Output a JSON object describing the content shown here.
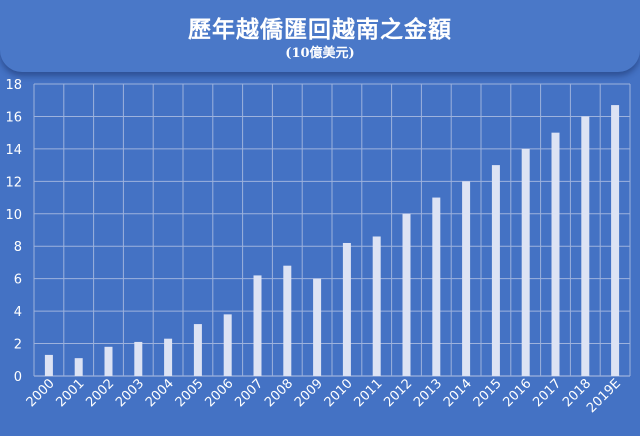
{
  "colors": {
    "background": "#4472c4",
    "bar": "#dde3f4",
    "grid": "#9db2dd"
  },
  "chart_data": {
    "type": "bar",
    "title": "歷年越僑匯回越南之金額",
    "subtitle": "(10億美元)",
    "categories": [
      "2000",
      "2001",
      "2002",
      "2003",
      "2004",
      "2005",
      "2006",
      "2007",
      "2008",
      "2009",
      "2010",
      "2011",
      "2012",
      "2013",
      "2014",
      "2015",
      "2016",
      "2017",
      "2018",
      "2019E"
    ],
    "values": [
      1.3,
      1.1,
      1.8,
      2.1,
      2.3,
      3.2,
      3.8,
      6.2,
      6.8,
      6.0,
      8.2,
      8.6,
      10.0,
      11.0,
      12.0,
      13.0,
      14.0,
      15.0,
      16.0,
      16.7
    ],
    "ylim": [
      0,
      18
    ],
    "yticks": [
      0,
      2,
      4,
      6,
      8,
      10,
      12,
      14,
      16,
      18
    ],
    "grid": true,
    "legend": "none"
  }
}
